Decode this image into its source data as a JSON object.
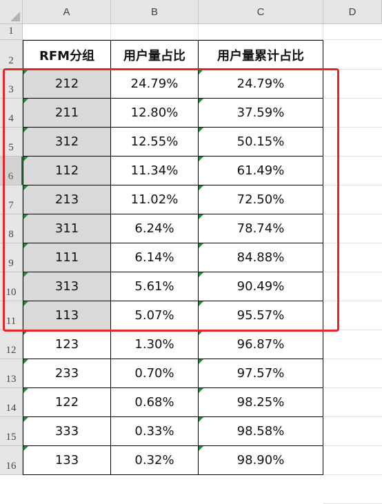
{
  "columns": [
    "A",
    "B",
    "C",
    "D"
  ],
  "row_numbers": [
    "1",
    "2",
    "3",
    "4",
    "5",
    "6",
    "7",
    "8",
    "9",
    "10",
    "11",
    "12",
    "13",
    "14",
    "15",
    "16"
  ],
  "selected_row": "6",
  "headers": [
    "RFM分组",
    "用户量占比",
    "用户量累计占比"
  ],
  "rows": [
    [
      "212",
      "24.79%",
      "24.79%"
    ],
    [
      "211",
      "12.80%",
      "37.59%"
    ],
    [
      "312",
      "12.55%",
      "50.15%"
    ],
    [
      "112",
      "11.34%",
      "61.49%"
    ],
    [
      "213",
      "11.02%",
      "72.50%"
    ],
    [
      "311",
      "6.24%",
      "78.74%"
    ],
    [
      "111",
      "6.14%",
      "84.88%"
    ],
    [
      "313",
      "5.61%",
      "90.49%"
    ],
    [
      "113",
      "5.07%",
      "95.57%"
    ],
    [
      "123",
      "1.30%",
      "96.87%"
    ],
    [
      "233",
      "0.70%",
      "97.57%"
    ],
    [
      "122",
      "0.68%",
      "98.25%"
    ],
    [
      "333",
      "0.33%",
      "98.58%"
    ],
    [
      "133",
      "0.32%",
      "98.90%"
    ]
  ],
  "highlighted_rows": 9,
  "colors": {
    "highlight_border": "#e8232a",
    "grey_fill": "#d9d9d9",
    "error_indicator": "#1f8f3a"
  }
}
